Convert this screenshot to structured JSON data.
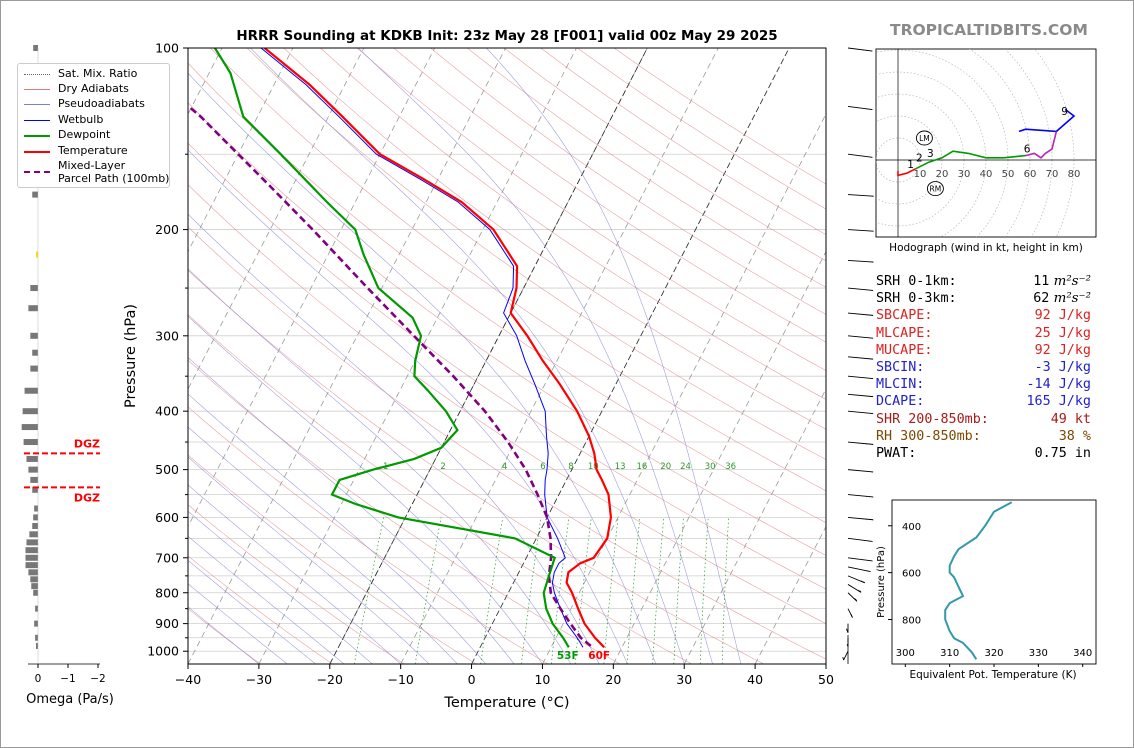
{
  "header": {
    "title": "HRRR Sounding at KDKB Init: 23z May 28 [F001] valid 00z May 29 2025",
    "brand": "TROPICALTIDBITS.COM"
  },
  "colors": {
    "temperature": "#ff0000",
    "dewpoint": "#009900",
    "wetbulb": "#0000ff",
    "parcel": "#800080",
    "dry_adiabat": "#e07a7a",
    "moist_adiabat": "#8080d0",
    "mixing_ratio": "#2a9a2a",
    "isotherm": "#9a9a9a",
    "dgz": "#ff0000",
    "omega": "#777777",
    "theta_e": "#3399aa",
    "stat_red": "#dd2222",
    "stat_blue": "#2222cc",
    "stat_darkred": "#aa1a1a",
    "stat_brown": "#7a4a00",
    "stat_black": "#000000"
  },
  "legend": {
    "items": [
      {
        "label": "Sat. Mix. Ratio",
        "style": "dotted",
        "color": "#666666"
      },
      {
        "label": "Dry Adiabats",
        "style": "solid-thin",
        "color": "#e07a7a"
      },
      {
        "label": "Pseudoadiabats",
        "style": "solid-thin",
        "color": "#8080d0"
      },
      {
        "label": "Wetbulb",
        "style": "solid",
        "color": "#0000ff"
      },
      {
        "label": "Dewpoint",
        "style": "thick",
        "color": "#009900"
      },
      {
        "label": "Temperature",
        "style": "thick",
        "color": "#ff0000"
      },
      {
        "label": "Mixed-Layer",
        "style": "none",
        "color": "#800080"
      },
      {
        "label": "Parcel Path (100mb)",
        "style": "dashed-thick",
        "color": "#800080"
      }
    ]
  },
  "chart_data": [
    {
      "type": "line",
      "name": "skew-t",
      "xlabel": "Temperature (°C)",
      "ylabel": "Pressure (hPa)",
      "xlim": [
        -40,
        50
      ],
      "ylim": [
        1050,
        100
      ],
      "yscale": "log",
      "x_ticks": [
        "−40",
        "−30",
        "−20",
        "−10",
        "0",
        "10",
        "20",
        "30",
        "40",
        "50"
      ],
      "x_tick_values": [
        -40,
        -30,
        -20,
        -10,
        0,
        10,
        20,
        30,
        40,
        50
      ],
      "y_ticks": [
        "100",
        "200",
        "300",
        "400",
        "500",
        "600",
        "700",
        "800",
        "900",
        "1000"
      ],
      "y_tick_values": [
        100,
        200,
        300,
        400,
        500,
        600,
        700,
        800,
        900,
        1000
      ],
      "mixing_ratio_labels": [
        "1",
        "2",
        "4",
        "6",
        "8",
        "10",
        "13",
        "16",
        "20",
        "24",
        "30",
        "36"
      ],
      "mixing_ratio_values": [
        1,
        2,
        4,
        6,
        8,
        10,
        13,
        16,
        20,
        24,
        30,
        36
      ],
      "surface_dewpoint_label": "53F",
      "surface_temperature_label": "60F",
      "series": [
        {
          "key": "temperature",
          "p": [
            985,
            950,
            900,
            850,
            800,
            770,
            740,
            715,
            700,
            650,
            600,
            550,
            520,
            500,
            470,
            440,
            400,
            360,
            330,
            300,
            275,
            250,
            230,
            200,
            180,
            165,
            150,
            130,
            115,
            100
          ],
          "t": [
            17.5,
            15.5,
            13.0,
            11.0,
            9.0,
            7.5,
            7.0,
            8.0,
            9.5,
            10.0,
            9.0,
            7.0,
            5.0,
            3.5,
            2.0,
            0.0,
            -3.5,
            -8.0,
            -12.0,
            -16.0,
            -20.0,
            -21.0,
            -22.5,
            -28.5,
            -35.0,
            -42.0,
            -50.0,
            -58.0,
            -65.0,
            -74.0
          ]
        },
        {
          "key": "dewpoint",
          "p": [
            985,
            950,
            900,
            850,
            800,
            750,
            700,
            650,
            600,
            570,
            550,
            520,
            500,
            480,
            460,
            430,
            400,
            370,
            350,
            330,
            300,
            280,
            250,
            220,
            200,
            180,
            150,
            130,
            110,
            100
          ],
          "t": [
            12.5,
            11.0,
            8.5,
            6.5,
            5.0,
            4.5,
            4.0,
            -3.0,
            -21.0,
            -28.0,
            -32.0,
            -32.0,
            -28.0,
            -23.0,
            -20.0,
            -19.0,
            -22.0,
            -26.0,
            -29.0,
            -30.0,
            -31.0,
            -33.5,
            -40.5,
            -45.0,
            -48.0,
            -54.0,
            -64.0,
            -72.0,
            -77.0,
            -81.0
          ]
        },
        {
          "key": "wetbulb",
          "p": [
            985,
            950,
            900,
            850,
            800,
            770,
            740,
            715,
            700,
            650,
            600,
            550,
            520,
            500,
            470,
            440,
            400,
            360,
            330,
            300,
            275,
            250,
            230,
            200,
            180,
            165,
            150,
            130,
            115,
            100
          ],
          "t": [
            14.5,
            13.0,
            10.5,
            8.5,
            6.5,
            5.5,
            5.0,
            5.0,
            5.5,
            3.0,
            0.0,
            -2.0,
            -3.0,
            -3.5,
            -4.5,
            -6.0,
            -8.0,
            -11.5,
            -14.5,
            -17.5,
            -21.0,
            -21.5,
            -23.0,
            -29.0,
            -35.5,
            -42.5,
            -50.5,
            -58.5,
            -65.5,
            -74.5
          ]
        },
        {
          "key": "parcel",
          "p": [
            980,
            950,
            900,
            850,
            800,
            750,
            700,
            650,
            600,
            550,
            500,
            450,
            400,
            350,
            300,
            250,
            200,
            170,
            150,
            130,
            120
          ],
          "t": [
            15.5,
            13.5,
            11.0,
            8.5,
            6.0,
            4.5,
            3.5,
            2.0,
            0.0,
            -3.0,
            -6.5,
            -11.0,
            -16.5,
            -23.5,
            -32.0,
            -42.0,
            -54.0,
            -63.0,
            -70.0,
            -78.0,
            -83.0
          ]
        }
      ]
    },
    {
      "type": "bar",
      "name": "omega",
      "xlabel": "Omega (Pa/s)",
      "x_ticks": [
        "0",
        "−1",
        "−2"
      ],
      "x_tick_values": [
        0,
        -1,
        -2
      ],
      "dgz_top_label": "DGZ",
      "dgz_bottom_label": "DGZ",
      "dgz_top_hpa": 470,
      "dgz_bottom_hpa": 535,
      "p": [
        100,
        120,
        135,
        150,
        175,
        220,
        250,
        270,
        300,
        320,
        340,
        370,
        400,
        425,
        450,
        480,
        500,
        520,
        540,
        580,
        600,
        620,
        640,
        660,
        680,
        700,
        720,
        740,
        760,
        780,
        800,
        850,
        900,
        950,
        980
      ],
      "values": [
        -0.05,
        -0.1,
        -0.12,
        -0.1,
        -0.06,
        -0.02,
        -0.08,
        -0.1,
        -0.08,
        -0.06,
        -0.08,
        -0.14,
        -0.16,
        -0.17,
        -0.15,
        -0.12,
        -0.1,
        -0.08,
        -0.06,
        -0.04,
        -0.05,
        -0.06,
        -0.09,
        -0.12,
        -0.13,
        -0.13,
        -0.13,
        -0.1,
        -0.08,
        -0.07,
        -0.05,
        -0.03,
        -0.04,
        -0.03,
        -0.02
      ],
      "color_notes": [
        false,
        false,
        false,
        false,
        false,
        true,
        false,
        false,
        false,
        false,
        false,
        false,
        false,
        false,
        false,
        false,
        false,
        false,
        false,
        false,
        false,
        false,
        false,
        false,
        false,
        false,
        false,
        false,
        false,
        false,
        false,
        false,
        false,
        false,
        false
      ]
    },
    {
      "type": "line",
      "name": "hodograph",
      "xlabel": "Hodograph (wind in kt, height in km)",
      "ring_labels": [
        "10",
        "20",
        "30",
        "40",
        "50",
        "60",
        "70",
        "80"
      ],
      "ring_values": [
        10,
        20,
        30,
        40,
        50,
        60,
        70,
        80
      ],
      "height_labels": [
        "1",
        "2",
        "3",
        "6",
        "9"
      ],
      "markers": [
        "LM",
        "RM"
      ],
      "segments": [
        {
          "color": "#ff0000",
          "u": [
            0,
            0,
            4,
            8
          ],
          "v": [
            -5,
            -7,
            -6,
            -4
          ]
        },
        {
          "color": "#009900",
          "u": [
            8,
            14,
            20,
            25,
            32,
            40,
            48,
            58
          ],
          "v": [
            -4,
            -1,
            1,
            4,
            3,
            1,
            1,
            2
          ]
        },
        {
          "color": "#0000ff",
          "u": [
            55,
            58,
            72,
            80,
            76
          ],
          "v": [
            13,
            14,
            13,
            20,
            23
          ]
        },
        {
          "color": "#bb22bb",
          "u": [
            58,
            62,
            65,
            67,
            70,
            72
          ],
          "v": [
            2,
            3,
            1,
            3,
            5,
            13
          ]
        }
      ],
      "height_points": [
        {
          "label": "1",
          "u": 6,
          "v": -5
        },
        {
          "label": "2",
          "u": 10,
          "v": -2
        },
        {
          "label": "3",
          "u": 15,
          "v": 0
        },
        {
          "label": "6",
          "u": 59,
          "v": 2
        },
        {
          "label": "9",
          "u": 76,
          "v": 19
        }
      ],
      "lm": {
        "u": 12,
        "v": 10
      },
      "rm": {
        "u": 17,
        "v": -13
      }
    },
    {
      "type": "line",
      "name": "theta-e",
      "xlabel": "Equivalent Pot. Temperature (K)",
      "ylabel": "Pressure (hPa)",
      "x_ticks": [
        "300",
        "310",
        "320",
        "330",
        "340"
      ],
      "x_tick_values": [
        300,
        310,
        320,
        330,
        340
      ],
      "y_ticks": [
        "400",
        "600",
        "800"
      ],
      "y_tick_values": [
        400,
        600,
        800
      ],
      "p": [
        300,
        340,
        400,
        450,
        500,
        530,
        570,
        600,
        620,
        660,
        700,
        730,
        760,
        800,
        850,
        880,
        900,
        940,
        970
      ],
      "theta_e": [
        324,
        320,
        318,
        316,
        312,
        311,
        310,
        310,
        311,
        312,
        313,
        310,
        309,
        309,
        310,
        311,
        313,
        315,
        316
      ]
    }
  ],
  "wind_barbs_note": "",
  "wind_barbs": {
    "p": [
      100,
      125,
      150,
      175,
      200,
      225,
      250,
      275,
      300,
      325,
      350,
      375,
      400,
      450,
      500,
      550,
      600,
      650,
      700,
      725,
      750,
      775,
      800,
      850,
      900,
      950,
      1000
    ],
    "speed_kt": [
      70,
      60,
      55,
      50,
      50,
      50,
      55,
      60,
      55,
      50,
      50,
      50,
      50,
      45,
      50,
      35,
      30,
      25,
      20,
      20,
      20,
      15,
      15,
      15,
      10,
      5,
      5
    ],
    "dir_deg": [
      250,
      250,
      250,
      260,
      260,
      260,
      255,
      255,
      255,
      255,
      255,
      255,
      255,
      255,
      255,
      255,
      255,
      250,
      250,
      240,
      220,
      210,
      200,
      190,
      180,
      180,
      170
    ]
  },
  "stats": [
    {
      "label": "SRH 0-1km:",
      "value": "11",
      "unit": "m²s⁻²",
      "color": "#000000"
    },
    {
      "label": "SRH 0-3km:",
      "value": "62",
      "unit": "m²s⁻²",
      "color": "#000000"
    },
    {
      "label": "SBCAPE:",
      "value": "92 J/kg",
      "unit": "",
      "color": "#dd2222"
    },
    {
      "label": "MLCAPE:",
      "value": "25 J/kg",
      "unit": "",
      "color": "#dd2222"
    },
    {
      "label": "MUCAPE:",
      "value": "92 J/kg",
      "unit": "",
      "color": "#dd2222"
    },
    {
      "label": "SBCIN:",
      "value": "-3 J/kg",
      "unit": "",
      "color": "#2222cc"
    },
    {
      "label": "MLCIN:",
      "value": "-14 J/kg",
      "unit": "",
      "color": "#2222cc"
    },
    {
      "label": "DCAPE:",
      "value": "165 J/kg",
      "unit": "",
      "color": "#2222cc"
    },
    {
      "label": "SHR 200-850mb:",
      "value": "49 kt",
      "unit": "",
      "color": "#aa1a1a"
    },
    {
      "label": "RH 300-850mb:",
      "value": "38 %",
      "unit": "",
      "color": "#7a4a00"
    },
    {
      "label": "PWAT:",
      "value": "0.75 in",
      "unit": "",
      "color": "#000000"
    }
  ]
}
